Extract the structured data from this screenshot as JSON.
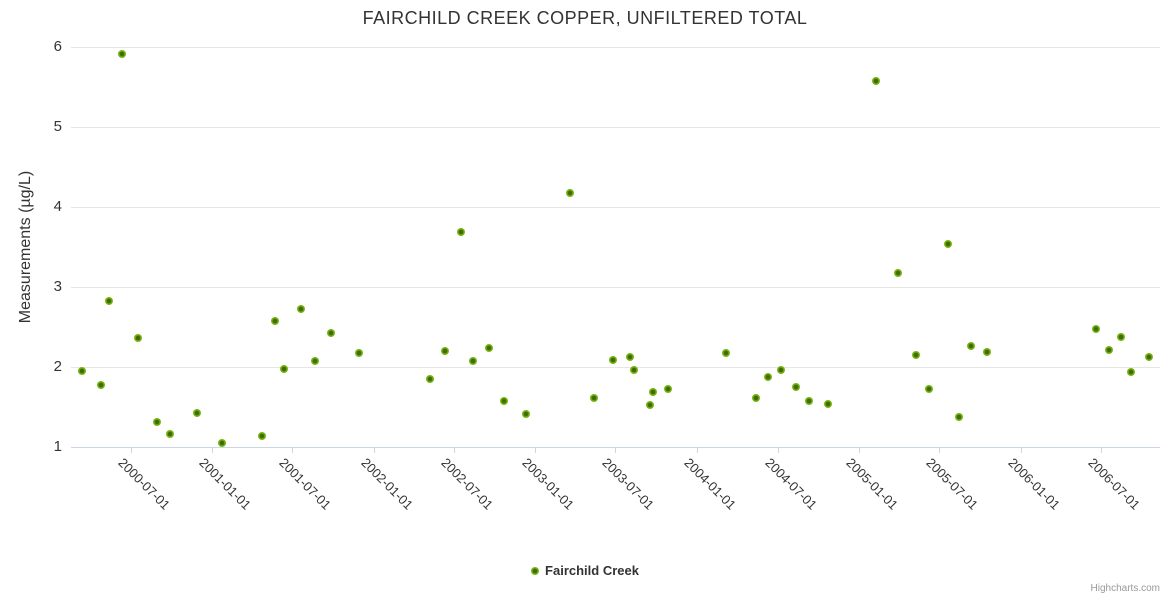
{
  "title": "FAIRCHILD CREEK COPPER, UNFILTERED TOTAL",
  "credits": "Highcharts.com",
  "legend": {
    "label": "Fairchild Creek"
  },
  "colors": {
    "marker_outer": "#76b413",
    "marker_center": "#3f6b00",
    "gridline": "#e6e6e6",
    "axis_line": "#ccd6eb",
    "text": "#333333",
    "credits_text": "#999999"
  },
  "chart_data": {
    "type": "scatter",
    "title": "FAIRCHILD CREEK COPPER, UNFILTERED TOTAL",
    "xlabel": "",
    "ylabel": "Measurements (µg/L)",
    "ylim": [
      1,
      6
    ],
    "y_ticks": [
      1,
      2,
      3,
      4,
      5,
      6
    ],
    "x_tick_labels": [
      "2000-07-01",
      "2001-01-01",
      "2001-07-01",
      "2002-01-01",
      "2002-07-01",
      "2003-01-01",
      "2003-07-01",
      "2004-01-01",
      "2004-07-01",
      "2005-01-01",
      "2005-07-01",
      "2006-01-01",
      "2006-07-01"
    ],
    "grid": "horizontal",
    "legend_position": "bottom-center",
    "series": [
      {
        "name": "Fairchild Creek",
        "color": "#76b413",
        "points": [
          {
            "x": "2000-03-14",
            "y": 1.95
          },
          {
            "x": "2000-04-24",
            "y": 1.78
          },
          {
            "x": "2000-05-13",
            "y": 2.83
          },
          {
            "x": "2000-06-11",
            "y": 5.91
          },
          {
            "x": "2000-07-18",
            "y": 2.36
          },
          {
            "x": "2000-08-30",
            "y": 1.31
          },
          {
            "x": "2000-09-27",
            "y": 1.16
          },
          {
            "x": "2000-11-28",
            "y": 1.43
          },
          {
            "x": "2001-01-24",
            "y": 1.05
          },
          {
            "x": "2001-04-24",
            "y": 1.14
          },
          {
            "x": "2001-05-24",
            "y": 2.58
          },
          {
            "x": "2001-06-12",
            "y": 1.98
          },
          {
            "x": "2001-07-21",
            "y": 2.72
          },
          {
            "x": "2001-08-22",
            "y": 2.08
          },
          {
            "x": "2001-09-26",
            "y": 2.42
          },
          {
            "x": "2001-11-28",
            "y": 2.18
          },
          {
            "x": "2002-05-08",
            "y": 1.85
          },
          {
            "x": "2002-06-11",
            "y": 2.2
          },
          {
            "x": "2002-07-16",
            "y": 3.69
          },
          {
            "x": "2002-08-13",
            "y": 2.08
          },
          {
            "x": "2002-09-18",
            "y": 2.24
          },
          {
            "x": "2002-10-22",
            "y": 1.57
          },
          {
            "x": "2002-12-10",
            "y": 1.41
          },
          {
            "x": "2003-03-20",
            "y": 4.17
          },
          {
            "x": "2003-05-14",
            "y": 1.61
          },
          {
            "x": "2003-06-26",
            "y": 2.09
          },
          {
            "x": "2003-08-02",
            "y": 2.13
          },
          {
            "x": "2003-08-11",
            "y": 1.96
          },
          {
            "x": "2003-09-16",
            "y": 1.52
          },
          {
            "x": "2003-09-24",
            "y": 1.69
          },
          {
            "x": "2003-10-28",
            "y": 1.72
          },
          {
            "x": "2004-03-07",
            "y": 2.17
          },
          {
            "x": "2004-05-13",
            "y": 1.61
          },
          {
            "x": "2004-06-09",
            "y": 1.88
          },
          {
            "x": "2004-07-09",
            "y": 1.96
          },
          {
            "x": "2004-08-12",
            "y": 1.75
          },
          {
            "x": "2004-09-10",
            "y": 1.57
          },
          {
            "x": "2004-10-24",
            "y": 1.54
          },
          {
            "x": "2005-02-09",
            "y": 5.57
          },
          {
            "x": "2005-03-30",
            "y": 3.18
          },
          {
            "x": "2005-05-09",
            "y": 2.15
          },
          {
            "x": "2005-06-09",
            "y": 1.72
          },
          {
            "x": "2005-07-20",
            "y": 3.54
          },
          {
            "x": "2005-08-16",
            "y": 1.38
          },
          {
            "x": "2005-09-12",
            "y": 2.26
          },
          {
            "x": "2005-10-18",
            "y": 2.19
          },
          {
            "x": "2006-06-21",
            "y": 2.48
          },
          {
            "x": "2006-07-19",
            "y": 2.21
          },
          {
            "x": "2006-08-15",
            "y": 2.38
          },
          {
            "x": "2006-09-07",
            "y": 1.94
          },
          {
            "x": "2006-10-18",
            "y": 2.12
          }
        ]
      }
    ]
  }
}
